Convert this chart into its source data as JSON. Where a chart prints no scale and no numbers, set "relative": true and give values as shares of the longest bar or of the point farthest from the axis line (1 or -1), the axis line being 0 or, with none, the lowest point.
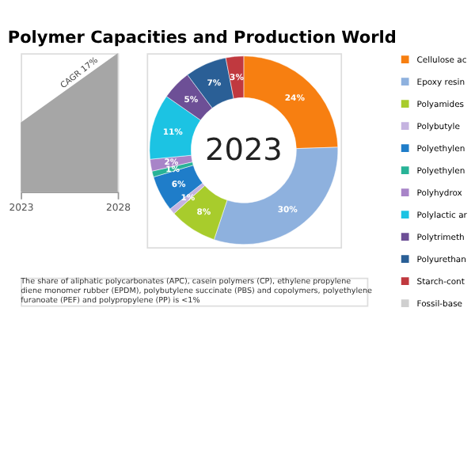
{
  "chart_data": [
    {
      "type": "area",
      "title": "Polymer Capacities and Production World",
      "x": [
        2023,
        2028
      ],
      "values": [
        0.5,
        1
      ],
      "relative": true,
      "color": "#a6a6a6",
      "xlim": [
        2023,
        2028
      ],
      "xticks": [
        2023,
        2028
      ],
      "annotations": [
        "CAGR 17%"
      ]
    },
    {
      "type": "donut",
      "categories": [
        "Cellulose ac",
        "Epoxy resin",
        "Polyamides",
        "Polybutyle",
        "Polyethylen",
        "Polyethylen",
        "Polyhydrox",
        "Polylactic ar",
        "Polytrimeth",
        "Polyurethan",
        "Starch-cont",
        "Fossil-base"
      ],
      "values": [
        24,
        30,
        8,
        1,
        6,
        1,
        2,
        11,
        5,
        7,
        3,
        null
      ],
      "colors": [
        "#f77f11",
        "#8eb1de",
        "#a8cc2c",
        "#c5b3e0",
        "#1f7dc9",
        "#28b397",
        "#a884c8",
        "#1cc3e3",
        "#6d4f96",
        "#2a5f96",
        "#c0393f",
        "#cfcfcf"
      ],
      "value_labels": [
        "24%",
        "30%",
        "8%",
        "1%",
        "6%",
        "1%",
        "2%",
        "11%",
        "5%",
        "7%",
        "3%",
        null
      ],
      "legend": "right",
      "annotations": [
        "2023",
        "The share of aliphatic polycarbonates (APC), casein polymers (CP), ethylene propylene diene monomer rubber (EPDM), polybutylene succinate (PBS) and copolymers, polyethylene furanoate (PEF) and polypropylene (PP) is <1%"
      ]
    }
  ]
}
